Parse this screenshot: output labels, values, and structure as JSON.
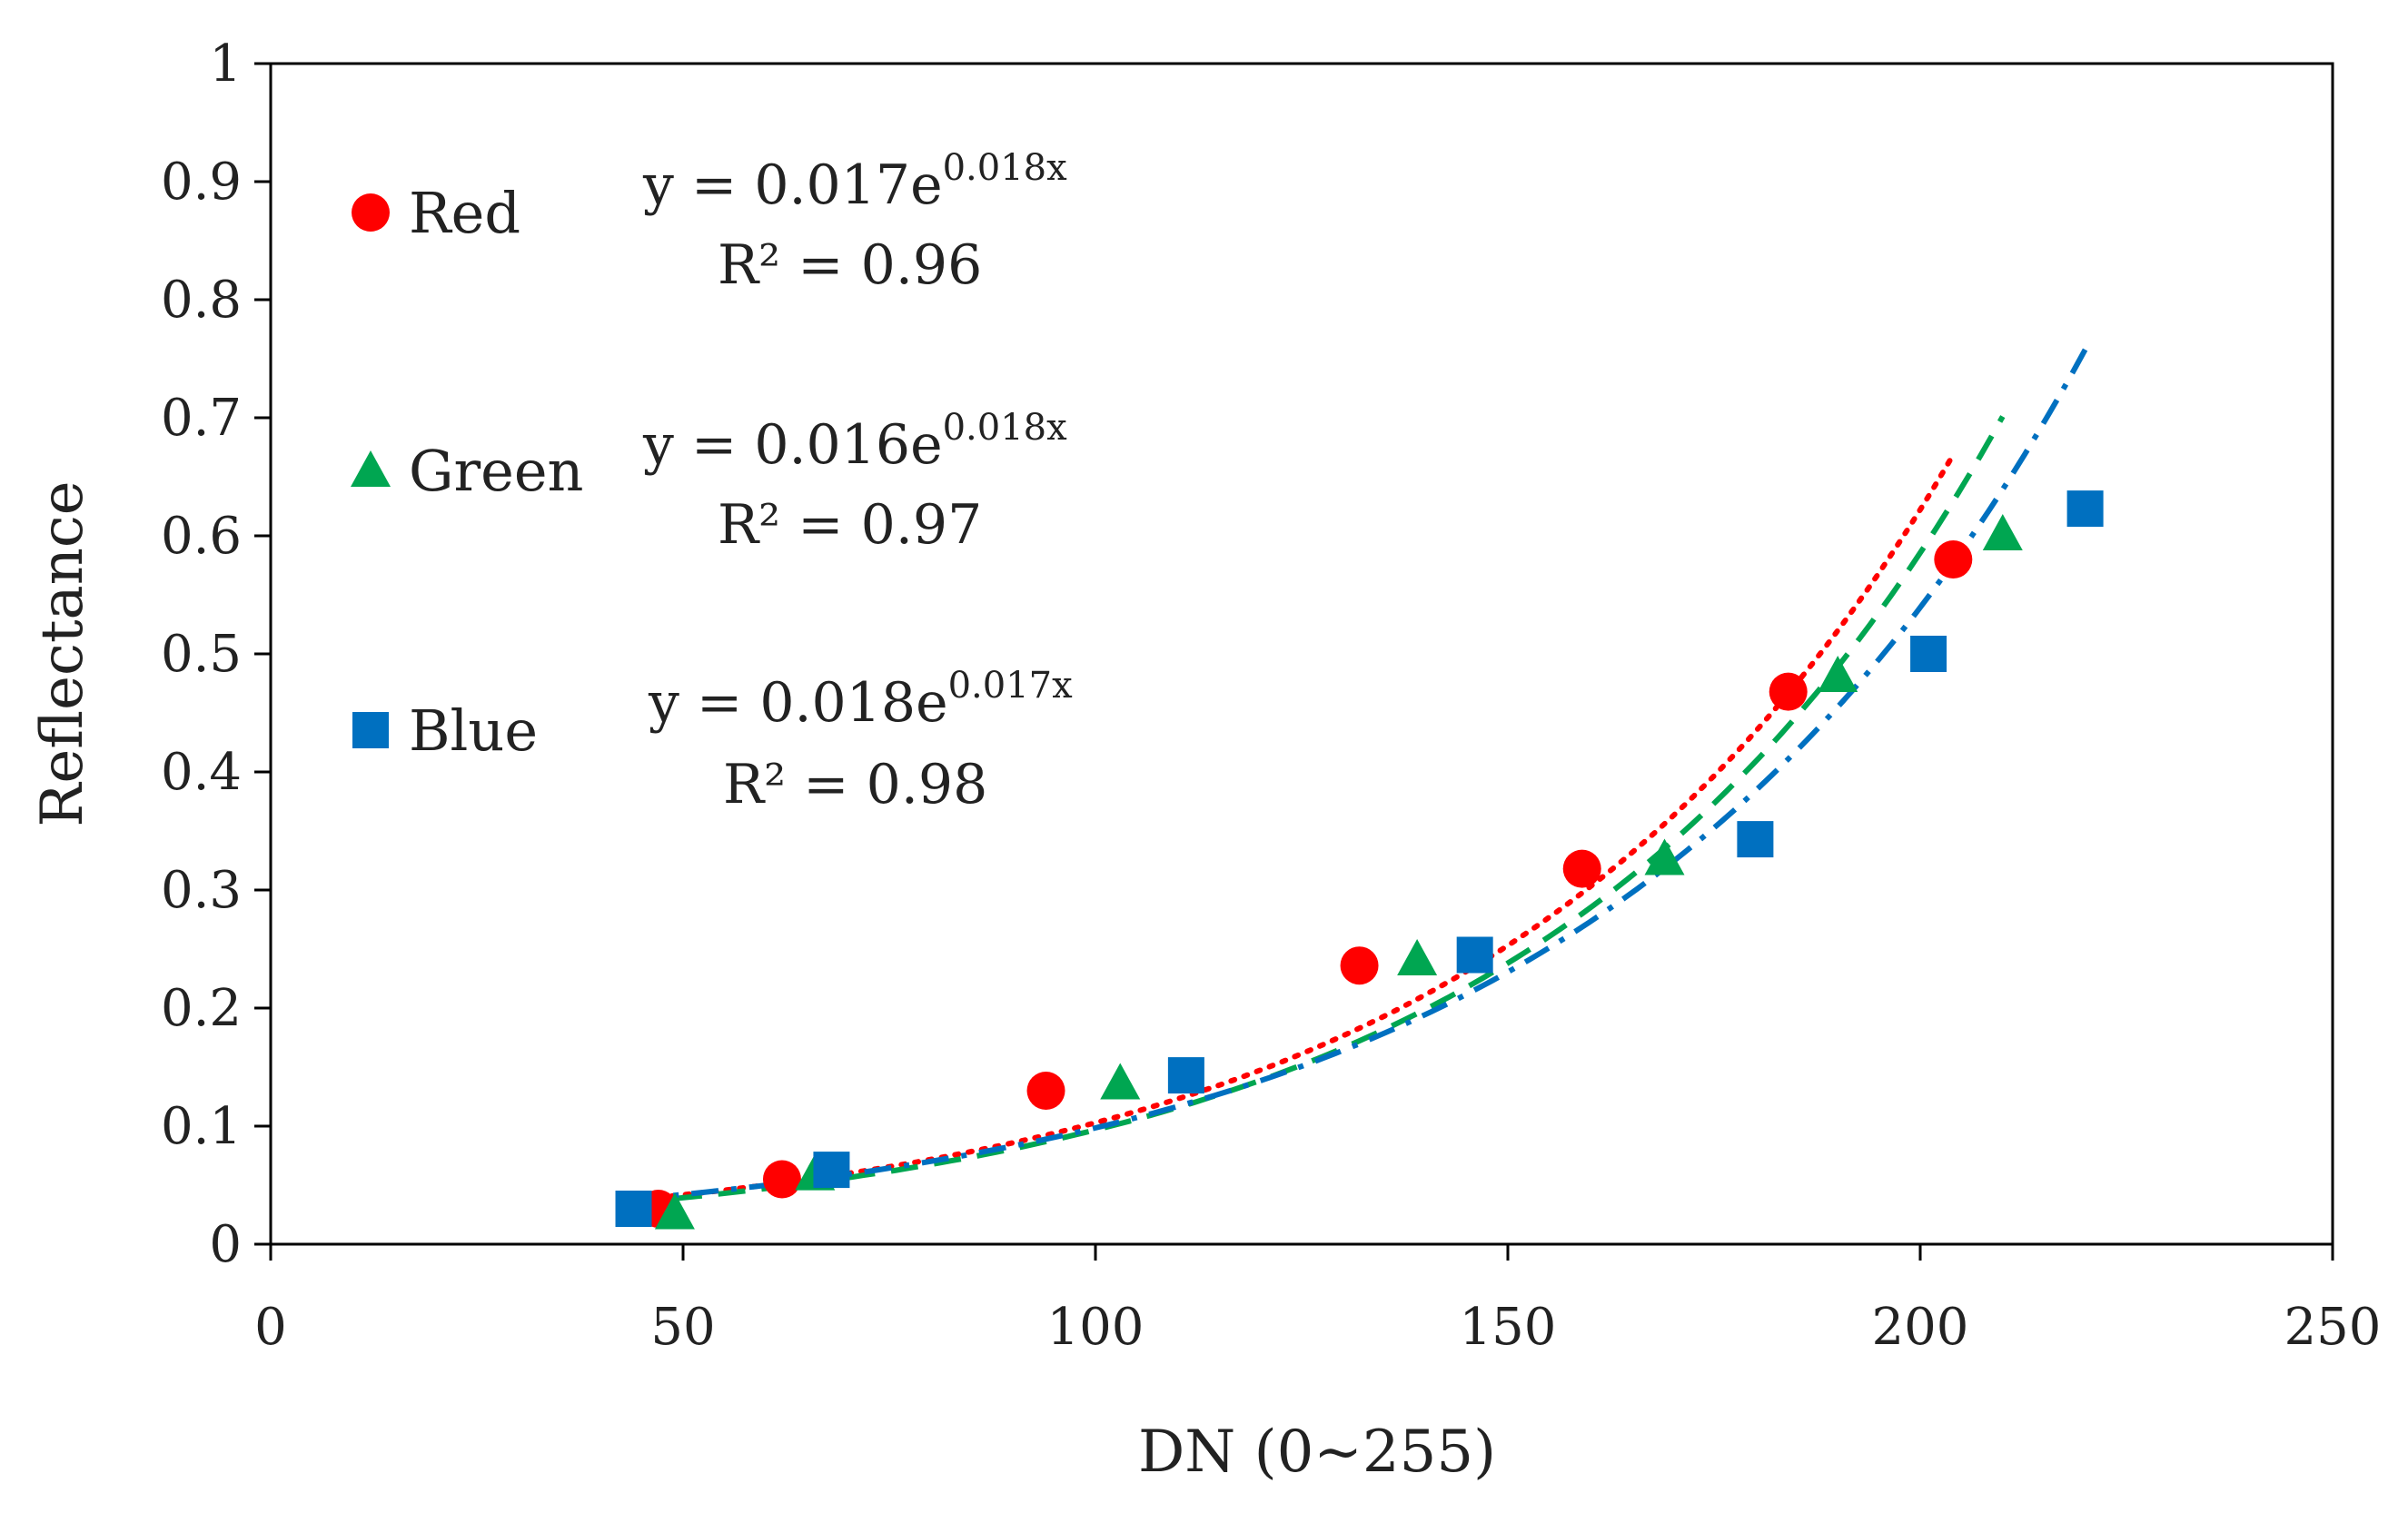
{
  "chart_data": {
    "type": "scatter",
    "title": "",
    "xlabel": "DN (0~255)",
    "ylabel": "Reflectance",
    "xlim": [
      0,
      250
    ],
    "ylim": [
      0,
      1
    ],
    "xticks": [
      0,
      50,
      100,
      150,
      200,
      250
    ],
    "yticks": [
      0,
      0.1,
      0.2,
      0.3,
      0.4,
      0.5,
      0.6,
      0.7,
      0.8,
      0.9,
      1
    ],
    "xtick_labels": [
      "0",
      "50",
      "100",
      "150",
      "200",
      "250"
    ],
    "ytick_labels": [
      "0",
      "0.1",
      "0.2",
      "0.3",
      "0.4",
      "0.5",
      "0.6",
      "0.7",
      "0.8",
      "0.9",
      "1"
    ],
    "grid": false,
    "series": [
      {
        "name": "Red",
        "marker": "circle",
        "color": "#ff0000",
        "line_style": "dotted",
        "x": [
          47,
          62,
          94,
          132,
          159,
          184,
          204
        ],
        "y": [
          0.03,
          0.055,
          0.13,
          0.236,
          0.318,
          0.468,
          0.58
        ],
        "fit": {
          "a": 0.017,
          "b": 0.018,
          "x_range": [
            47,
            204
          ]
        },
        "equation_base": "y = 0.017e",
        "equation_exp": "0.018x",
        "r2_label": "R² = 0.96"
      },
      {
        "name": "Green",
        "marker": "triangle",
        "color": "#00a651",
        "line_style": "dashed",
        "x": [
          49,
          66,
          103,
          139,
          169,
          190,
          210
        ],
        "y": [
          0.025,
          0.058,
          0.135,
          0.24,
          0.325,
          0.48,
          0.6
        ],
        "fit": {
          "a": 0.016,
          "b": 0.018,
          "x_range": [
            49,
            210
          ]
        },
        "equation_base": "y = 0.016e",
        "equation_exp": "0.018x",
        "r2_label": "R² = 0.97"
      },
      {
        "name": "Blue",
        "marker": "square",
        "color": "#0070c0",
        "line_style": "dashdot",
        "x": [
          44,
          68,
          111,
          146,
          180,
          201,
          220
        ],
        "y": [
          0.03,
          0.063,
          0.143,
          0.245,
          0.343,
          0.5,
          0.623
        ],
        "fit": {
          "a": 0.018,
          "b": 0.017,
          "x_range": [
            44,
            220
          ]
        },
        "equation_base": "y = 0.018e",
        "equation_exp": "0.017x",
        "r2_label": "R² = 0.98"
      }
    ]
  }
}
